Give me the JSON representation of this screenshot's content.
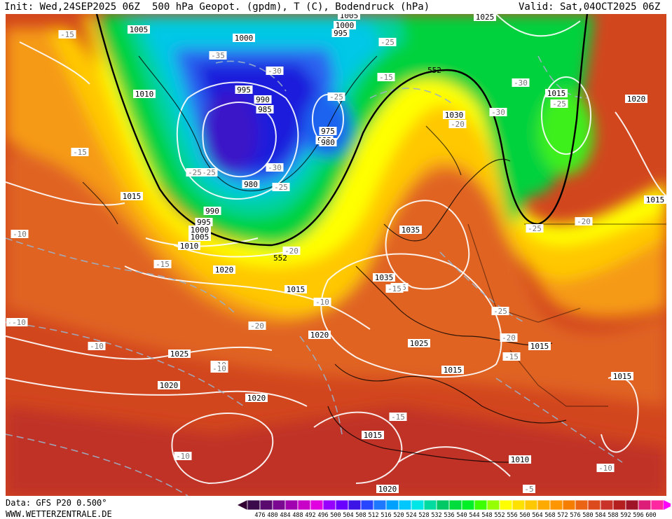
{
  "header": {
    "init": "Init: Wed,24SEP2025 06Z",
    "title": "500 hPa Geopot. (gpdm), T (C), Bodendruck (hPa)",
    "valid": "Valid: Sat,04OCT2025 06Z"
  },
  "footer": {
    "data_source": "Data: GFS P20 0.500°",
    "website": "WWW.WETTERZENTRALE.DE"
  },
  "legend": {
    "ticks": [
      "476",
      "480",
      "484",
      "488",
      "492",
      "496",
      "500",
      "504",
      "508",
      "512",
      "516",
      "520",
      "524",
      "528",
      "532",
      "536",
      "540",
      "544",
      "548",
      "552",
      "556",
      "560",
      "564",
      "568",
      "572",
      "576",
      "580",
      "584",
      "588",
      "592",
      "596",
      "600"
    ],
    "colors": [
      "#3a0a4a",
      "#5a0a6e",
      "#7a0890",
      "#a000b0",
      "#c800c8",
      "#e000e0",
      "#9600ff",
      "#6a00ff",
      "#3c14e6",
      "#2846ff",
      "#1e78ff",
      "#00a0ff",
      "#00c8ff",
      "#00e6e6",
      "#00dca0",
      "#00c864",
      "#00dc3c",
      "#00f028",
      "#3cff00",
      "#96ff00",
      "#ffff00",
      "#ffe100",
      "#ffc800",
      "#ffaa00",
      "#ff9600",
      "#f57d00",
      "#eb6414",
      "#dc4b1e",
      "#c83228",
      "#b41e1e",
      "#a01428",
      "#dc1e78",
      "#ff28a0"
    ],
    "left_arrow_color": "#330033",
    "right_arrow_color": "#ff00ff"
  },
  "map": {
    "isobar_labels": [
      "1005",
      "1005",
      "1000",
      "995",
      "1025",
      "1000",
      "995",
      "990",
      "985",
      "985",
      "1010",
      "1030",
      "1015",
      "1020",
      "1015",
      "980",
      "990",
      "995",
      "1000",
      "1005",
      "1010",
      "1035",
      "1015",
      "1015",
      "1020",
      "1020",
      "1035",
      "1025",
      "1025",
      "1020",
      "1020",
      "1015",
      "1015",
      "1015",
      "1015",
      "1010",
      "1020",
      "975",
      "980"
    ],
    "temp_labels": [
      "-15",
      "-35",
      "-30",
      "-25",
      "-25",
      "-15",
      "-30",
      "-25",
      "-30",
      "-25",
      "-20",
      "-15",
      "-25",
      "-30",
      "-25",
      "-25",
      "-20",
      "-20",
      "-10",
      "-15",
      "-15",
      "-5",
      "-10",
      "-10",
      "-10",
      "-20",
      "-25",
      "-20",
      "-15",
      "-15",
      "-10",
      "-10",
      "-5",
      "-10",
      "-15",
      "-10"
    ],
    "contour_552_labels": [
      "552",
      "552"
    ],
    "colors": {
      "deep_blue": "#1e1edc",
      "blue": "#2a64f0",
      "cyan": "#00c8e6",
      "teal": "#00d2a0",
      "green": "#00d23c",
      "lightgreen": "#3cf01e",
      "yellow": "#ffff00",
      "gold": "#ffc800",
      "orange": "#f59a14",
      "darkorange": "#eb6e1e",
      "red": "#dc4b1e",
      "darkred": "#c03228"
    }
  }
}
